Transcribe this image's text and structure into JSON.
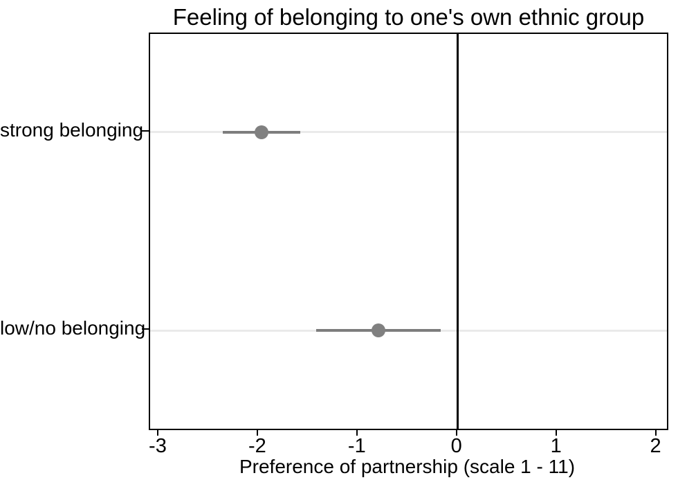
{
  "chart_data": {
    "type": "scatter",
    "subtype": "coefficient-plot-horizontal-ci",
    "title": "Feeling of belonging to one's own ethnic group",
    "xlabel": "Preference of partnership (scale 1 - 11)",
    "ylabel": "",
    "categories": [
      "strong belonging",
      "low/no belonging"
    ],
    "points": [
      {
        "label": "strong belonging",
        "estimate": -1.97,
        "ci_low": -2.36,
        "ci_high": -1.58,
        "row_fraction": 0.249
      },
      {
        "label": "low/no belonging",
        "estimate": -0.8,
        "ci_low": -1.42,
        "ci_high": -0.17,
        "row_fraction": 0.751
      }
    ],
    "x_ticks": [
      -3,
      -2,
      -1,
      0,
      1,
      2
    ],
    "xlim": [
      -3.09,
      2.1
    ],
    "reference_line_x": 0,
    "grid": true,
    "legend": "none",
    "colors": {
      "marker": "#808080",
      "ci_line": "#7d7d7d",
      "gridline": "#eaeaea",
      "axis": "#000000",
      "reference_line": "#000000",
      "background": "#ffffff",
      "text": "#000000"
    }
  }
}
